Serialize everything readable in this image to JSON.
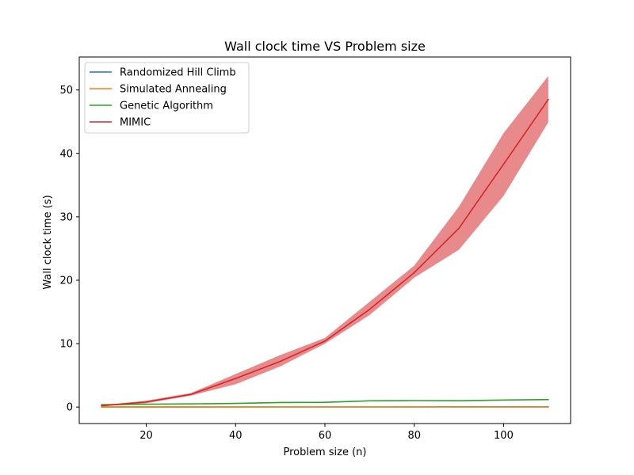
{
  "chart_data": {
    "type": "line",
    "title": "Wall clock time VS Problem size",
    "xlabel": "Problem size (n)",
    "ylabel": "Wall clock time (s)",
    "xlim": [
      5,
      115
    ],
    "ylim": [
      -2.6,
      55.2
    ],
    "xticks": [
      20,
      40,
      60,
      80,
      100
    ],
    "yticks": [
      0,
      10,
      20,
      30,
      40,
      50
    ],
    "grid": false,
    "legend_position": "top-left",
    "x": [
      10,
      20,
      30,
      40,
      50,
      60,
      70,
      80,
      90,
      100,
      110
    ],
    "series": [
      {
        "name": "Randomized Hill Climb",
        "color": "#1f77b4",
        "values": [
          0.01,
          0.01,
          0.01,
          0.02,
          0.02,
          0.02,
          0.02,
          0.02,
          0.03,
          0.03,
          0.03
        ]
      },
      {
        "name": "Simulated Annealing",
        "color": "#ff7f0e",
        "values": [
          0.01,
          0.01,
          0.01,
          0.01,
          0.02,
          0.02,
          0.02,
          0.02,
          0.02,
          0.02,
          0.02
        ]
      },
      {
        "name": "Genetic Algorithm",
        "color": "#2ca02c",
        "values": [
          0.38,
          0.45,
          0.5,
          0.58,
          0.72,
          0.75,
          0.98,
          1.02,
          1.0,
          1.1,
          1.18
        ]
      },
      {
        "name": "MIMIC",
        "color": "#d62728",
        "values": [
          0.2,
          0.8,
          2.0,
          4.5,
          7.2,
          10.4,
          15.4,
          21.2,
          28.2,
          38.3,
          48.5
        ],
        "band_low": [
          0.1,
          0.6,
          1.8,
          3.6,
          6.4,
          10.0,
          14.5,
          20.4,
          24.8,
          33.3,
          44.9
        ],
        "band_high": [
          0.3,
          1.0,
          2.2,
          5.2,
          8.2,
          10.9,
          16.6,
          22.3,
          31.6,
          43.2,
          52.2
        ],
        "band_color": "#e88a8b"
      }
    ]
  }
}
